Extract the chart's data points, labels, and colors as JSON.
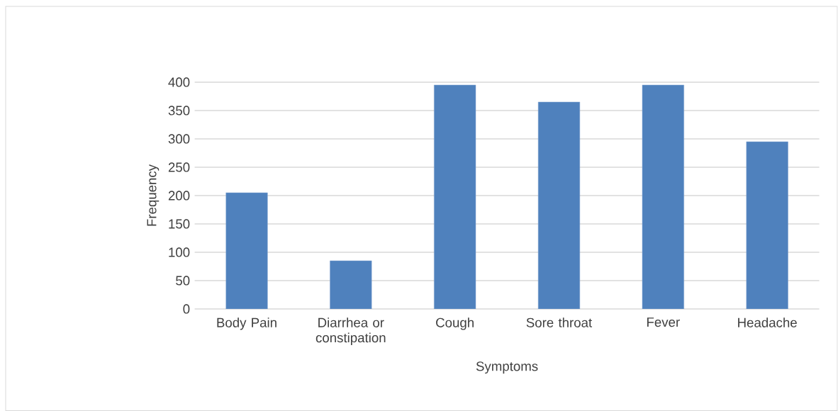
{
  "chart_data": {
    "type": "bar",
    "xlabel": "Symptoms",
    "ylabel": "Frequency",
    "categories": [
      "Body Pain",
      "Diarrhea or constipation",
      "Cough",
      "Sore throat",
      "Fever",
      "Headache"
    ],
    "values": [
      205,
      85,
      395,
      365,
      395,
      295
    ],
    "color": "#4f81bd",
    "ylim": [
      0,
      400
    ],
    "yticks": [
      0,
      50,
      100,
      150,
      200,
      250,
      300,
      350,
      400
    ],
    "grid": "y"
  }
}
